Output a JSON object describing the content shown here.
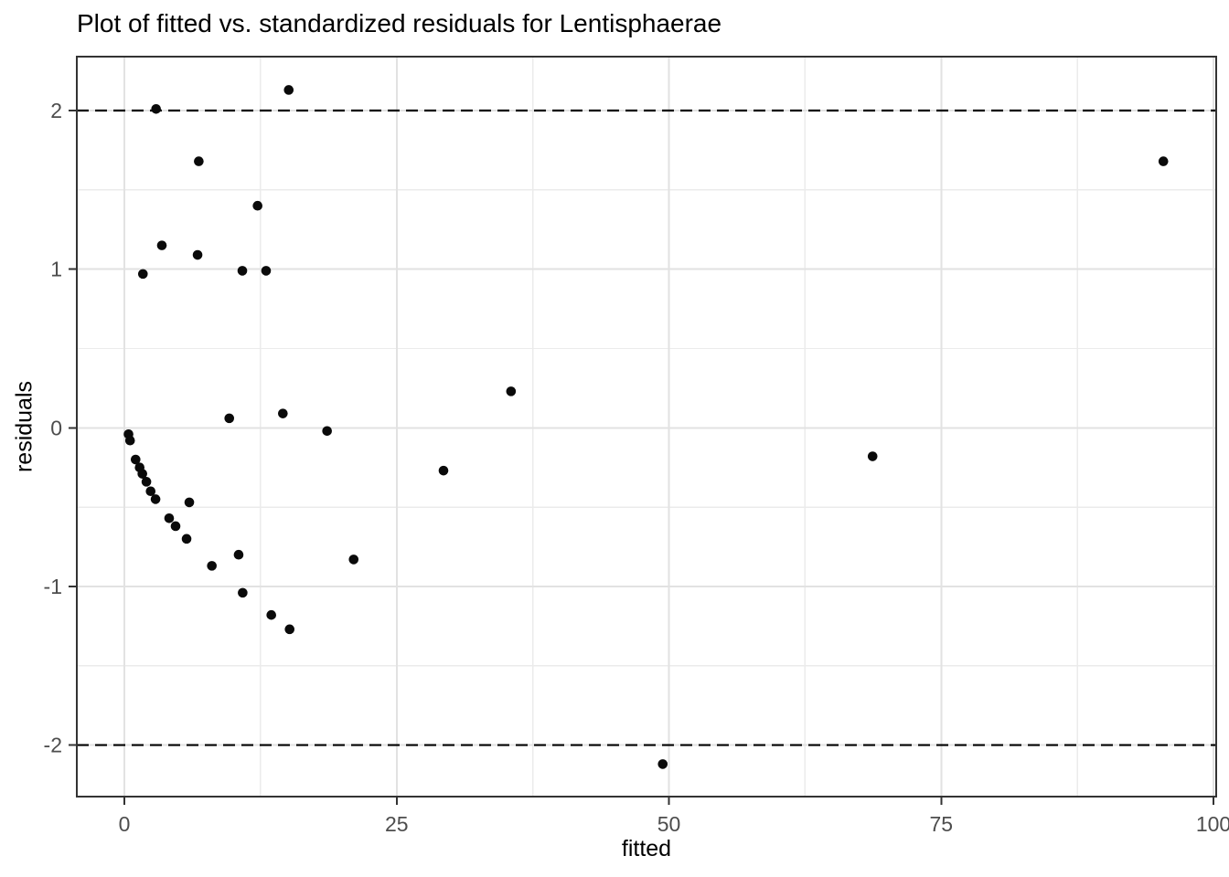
{
  "chart_data": {
    "type": "scatter",
    "title": "Plot of fitted vs. standardized residuals for Lentisphaerae",
    "xlabel": "fitted",
    "ylabel": "residuals",
    "xlim": [
      -4.37,
      100.25
    ],
    "ylim": [
      -2.325,
      2.34
    ],
    "x_ticks": [
      0,
      25,
      50,
      75,
      100
    ],
    "x_tick_labels": [
      "0",
      "25",
      "50",
      "75",
      "100"
    ],
    "y_ticks": [
      -2,
      -1,
      0,
      1,
      2
    ],
    "y_tick_labels": [
      "-2",
      "-1",
      "0",
      "1",
      "2"
    ],
    "x_minor_ticks": [
      12.5,
      37.5,
      62.5,
      87.5
    ],
    "y_minor_ticks": [
      -1.5,
      -0.5,
      0.5,
      1.5
    ],
    "grid": "on",
    "legend": "none",
    "reference_lines": [
      {
        "y": 2,
        "style": "dashed",
        "color": "#000000"
      },
      {
        "y": -2,
        "style": "dashed",
        "color": "#000000"
      }
    ],
    "points": [
      [
        0.38,
        -0.04
      ],
      [
        0.52,
        -0.08
      ],
      [
        1.03,
        -0.2
      ],
      [
        1.4,
        -0.25
      ],
      [
        1.65,
        -0.29
      ],
      [
        2.02,
        -0.34
      ],
      [
        2.41,
        -0.4
      ],
      [
        2.86,
        -0.45
      ],
      [
        4.11,
        -0.57
      ],
      [
        4.7,
        -0.62
      ],
      [
        5.71,
        -0.7
      ],
      [
        5.96,
        -0.47
      ],
      [
        8.03,
        -0.87
      ],
      [
        10.49,
        -0.8
      ],
      [
        10.86,
        -1.04
      ],
      [
        13.49,
        -1.18
      ],
      [
        15.17,
        -1.27
      ],
      [
        21.05,
        -0.83
      ],
      [
        29.3,
        -0.27
      ],
      [
        35.5,
        0.23
      ],
      [
        49.43,
        -2.12
      ],
      [
        68.7,
        -0.18
      ],
      [
        95.4,
        1.68
      ],
      [
        9.63,
        0.06
      ],
      [
        14.55,
        0.09
      ],
      [
        18.61,
        -0.02
      ],
      [
        1.7,
        0.97
      ],
      [
        10.83,
        0.99
      ],
      [
        13.01,
        0.99
      ],
      [
        6.72,
        1.09
      ],
      [
        3.44,
        1.15
      ],
      [
        12.23,
        1.4
      ],
      [
        6.83,
        1.68
      ],
      [
        2.91,
        2.01
      ],
      [
        15.09,
        2.13
      ]
    ],
    "style": {
      "point_color": "#0a0a0a",
      "point_radius": 5.3,
      "major_grid_color": "#e2e2e2",
      "minor_grid_color": "#ebebeb",
      "panel_border_color": "#333333",
      "tick_color": "#333333",
      "tick_label_color": "#4d4d4d",
      "background": "#ffffff"
    }
  }
}
